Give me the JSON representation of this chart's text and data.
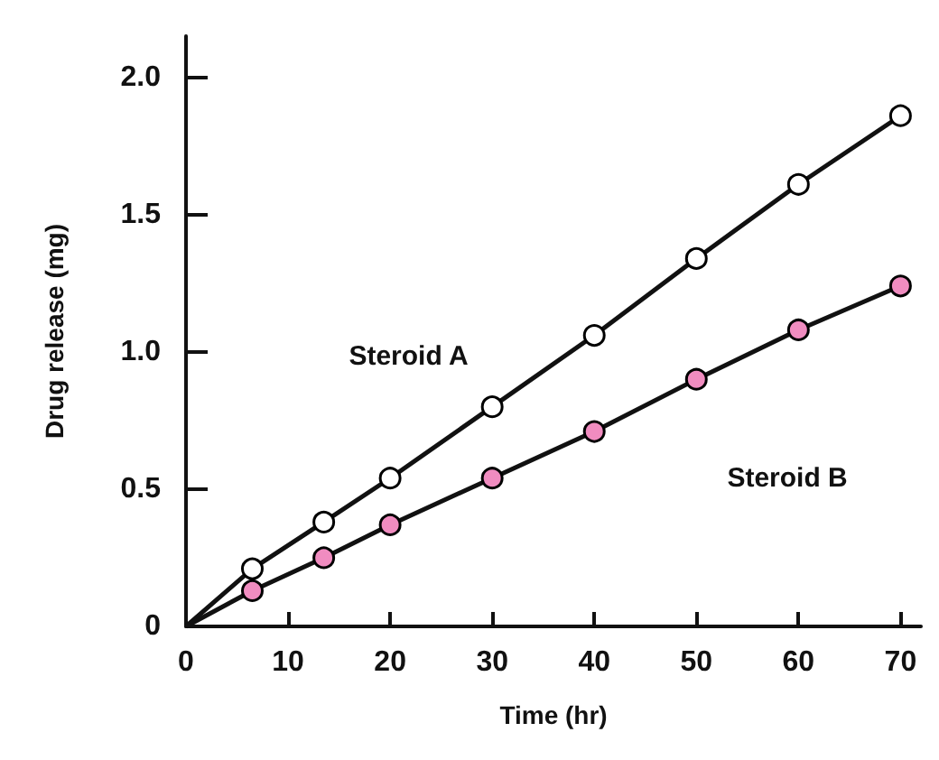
{
  "chart_data": {
    "type": "line",
    "xlabel": "Time (hr)",
    "ylabel": "Drug release (mg)",
    "x": [
      0,
      6.5,
      13.5,
      20,
      30,
      40,
      50,
      60,
      70
    ],
    "series": [
      {
        "name": "Steroid A",
        "color": "#ffffff",
        "values": [
          0,
          0.21,
          0.38,
          0.54,
          0.8,
          1.06,
          1.34,
          1.61,
          1.86
        ]
      },
      {
        "name": "Steroid B",
        "color": "#f08cc0",
        "values": [
          0,
          0.13,
          0.25,
          0.37,
          0.54,
          0.71,
          0.9,
          1.08,
          1.24
        ]
      }
    ],
    "xlim": [
      0,
      72
    ],
    "xticks": [
      0,
      10,
      20,
      30,
      40,
      50,
      60,
      70
    ],
    "ylim": [
      0,
      2.15
    ],
    "yticks": [
      0,
      {
        "value": 0.5,
        "label": "0.5"
      },
      {
        "value": 1,
        "label": "1.0"
      },
      {
        "value": 1.5,
        "label": "1.5"
      },
      {
        "value": 2,
        "label": "2.0"
      }
    ],
    "grid": false,
    "marker": "circle",
    "line_style": "solid"
  }
}
